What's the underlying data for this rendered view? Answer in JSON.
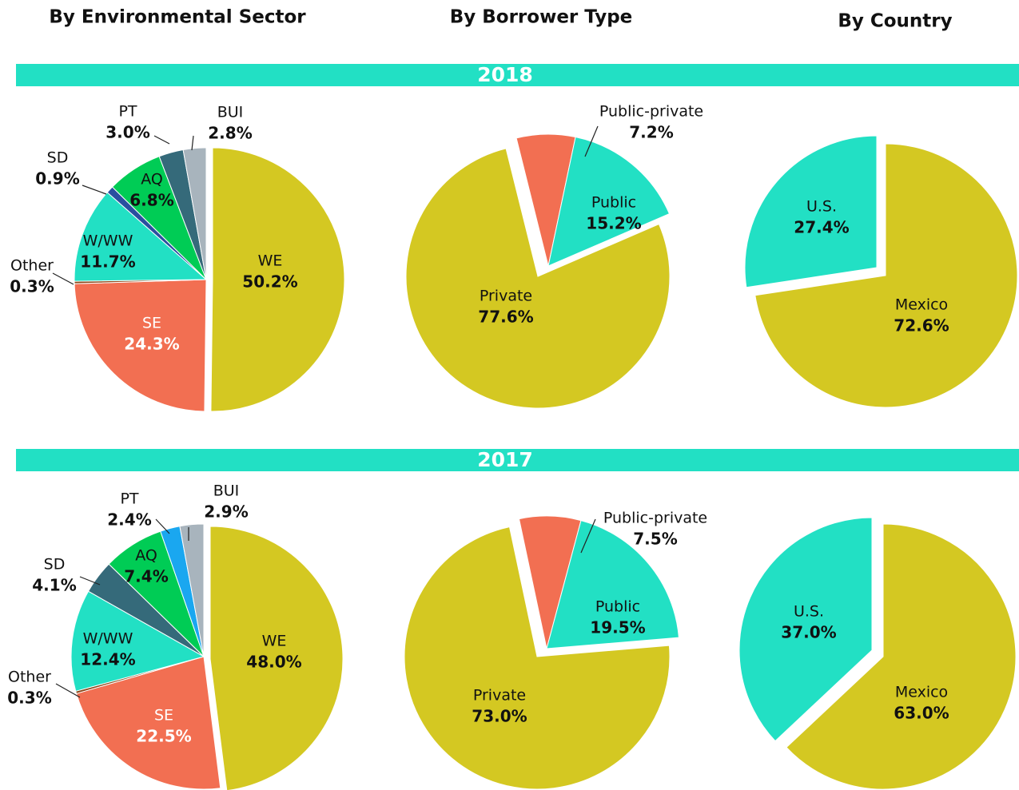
{
  "headers": [
    "By Environmental Sector",
    "By Borrower Type",
    "By Country"
  ],
  "sections": [
    "2018",
    "2017"
  ],
  "chart_data": [
    {
      "type": "pie",
      "categories": [
        "WE",
        "SE",
        "Other",
        "W/WW",
        "SD",
        "AQ",
        "PT",
        "BUI"
      ],
      "values": [
        50.2,
        24.3,
        0.3,
        11.7,
        0.9,
        6.8,
        3.0,
        2.8
      ],
      "value_labels": [
        "50.2%",
        "24.3%",
        "0.3%",
        "11.7%",
        "0.9%",
        "6.8%",
        "3.0%",
        "2.8%"
      ],
      "colors": [
        "#d4c822",
        "#f26f52",
        "#8b4a1c",
        "#22e0c4",
        "#2a4fa0",
        "#00cc55",
        "#356a7a",
        "#a8b4bd"
      ]
    },
    {
      "type": "pie",
      "categories": [
        "Public-private",
        "Public",
        "Private"
      ],
      "values": [
        7.2,
        15.2,
        77.6
      ],
      "value_labels": [
        "7.2%",
        "15.2%",
        "77.6%"
      ],
      "colors": [
        "#f26f52",
        "#22e0c4",
        "#d4c822"
      ]
    },
    {
      "type": "pie",
      "categories": [
        "Mexico",
        "U.S."
      ],
      "values": [
        72.6,
        27.4
      ],
      "value_labels": [
        "72.6%",
        "27.4%"
      ],
      "colors": [
        "#d4c822",
        "#22e0c4"
      ]
    },
    {
      "type": "pie",
      "categories": [
        "WE",
        "SE",
        "Other",
        "W/WW",
        "SD",
        "AQ",
        "PT",
        "BUI"
      ],
      "values": [
        48.0,
        22.5,
        0.3,
        12.4,
        4.1,
        7.4,
        2.4,
        2.9
      ],
      "value_labels": [
        "48.0%",
        "22.5%",
        "0.3%",
        "12.4%",
        "4.1%",
        "7.4%",
        "2.4%",
        "2.9%"
      ],
      "colors": [
        "#d4c822",
        "#f26f52",
        "#8b4a1c",
        "#22e0c4",
        "#356a7a",
        "#00cc55",
        "#1aa7f0",
        "#a8b4bd"
      ]
    },
    {
      "type": "pie",
      "categories": [
        "Public-private",
        "Public",
        "Private"
      ],
      "values": [
        7.5,
        19.5,
        73.0
      ],
      "value_labels": [
        "7.5%",
        "19.5%",
        "73.0%"
      ],
      "colors": [
        "#f26f52",
        "#22e0c4",
        "#d4c822"
      ]
    },
    {
      "type": "pie",
      "categories": [
        "Mexico",
        "U.S."
      ],
      "values": [
        63.0,
        37.0
      ],
      "value_labels": [
        "63.0%",
        "37.0%"
      ],
      "colors": [
        "#d4c822",
        "#22e0c4"
      ]
    }
  ]
}
